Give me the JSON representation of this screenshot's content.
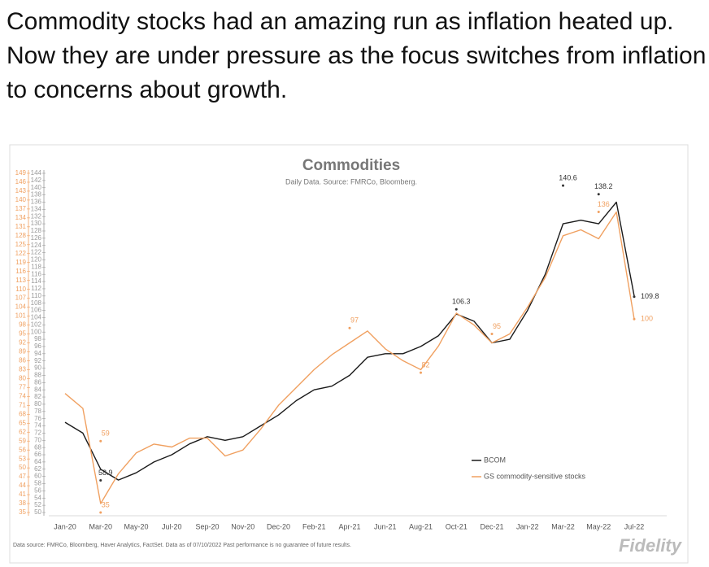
{
  "tweet_text": "Commodity stocks had an amazing run as inflation heated up. Now they are under pressure as the focus switches from inflation to concerns about growth.",
  "footer": "Data source: FMRCo, Bloomberg, Haver Analytics, FactSet. Data as of 07/10/2022 Past performance is no guarantee of future results.",
  "logo": "Fidelity",
  "chart_data": {
    "type": "line",
    "title": "Commodities",
    "subtitle": "Daily Data. Source: FMRCo, Bloomberg.",
    "categories": [
      "Jan-20",
      null,
      "Mar-20",
      null,
      "May-20",
      null,
      "Jul-20",
      null,
      "Sep-20",
      null,
      "Nov-20",
      null,
      "Dec-20",
      null,
      "Feb-21",
      null,
      "Apr-21",
      null,
      "Jun-21",
      null,
      "Aug-21",
      null,
      "Oct-21",
      null,
      "Dec-21",
      null,
      "Jan-22",
      null,
      "Mar-22",
      null,
      "May-22",
      null,
      "Jul-22"
    ],
    "series": [
      {
        "name": "BCOM",
        "color": "#1a1a1a",
        "axis": "y2",
        "values": [
          75,
          72,
          62,
          59,
          61,
          64,
          66,
          69,
          71,
          70,
          71,
          74,
          77,
          81,
          84,
          85,
          88,
          93,
          94,
          94,
          96,
          99,
          105,
          103,
          97,
          98,
          106,
          116,
          130,
          131,
          130,
          136,
          110
        ]
      },
      {
        "name": "GS commodity-sensitive stocks",
        "color": "#f0a060",
        "values": [
          75,
          70,
          38,
          48,
          55,
          58,
          57,
          60,
          60,
          54,
          56,
          63,
          71,
          77,
          83,
          88,
          92,
          96,
          90,
          86,
          83,
          91,
          102,
          98,
          92,
          95,
          104,
          114,
          128,
          130,
          127,
          136,
          100
        ]
      }
    ],
    "annotations": [
      {
        "x": "Mar-20",
        "y": 58.9,
        "axis": "y2"
      },
      {
        "x": "Oct-21",
        "y": 106.3,
        "axis": "y2"
      },
      {
        "x": "Mar-22",
        "y": 140.6,
        "axis": "y2"
      },
      {
        "x": "May-22",
        "y": 138.2,
        "axis": "y2"
      },
      {
        "x": "Jul-22",
        "y": 109.8,
        "axis": "y2"
      },
      {
        "x": "Mar-20",
        "y": 35
      },
      {
        "x": "Mar-20",
        "y": 59
      },
      {
        "x": "Apr-21",
        "y": 97
      },
      {
        "x": "Aug-21",
        "y": 82
      },
      {
        "x": "Dec-21",
        "y": 95
      },
      {
        "x": "May-22",
        "y": 136
      },
      {
        "x": "Jul-22",
        "y": 100
      }
    ],
    "ylim": [
      35,
      149
    ],
    "yticks": [
      35,
      38,
      41,
      44,
      47,
      50,
      53,
      56,
      59,
      62,
      65,
      68,
      71,
      74,
      77,
      80,
      83,
      86,
      89,
      92,
      95,
      98,
      101,
      104,
      107,
      110,
      113,
      116,
      119,
      122,
      125,
      128,
      131,
      134,
      137,
      140,
      143,
      146,
      149
    ],
    "y2lim": [
      50,
      144
    ],
    "y2ticks": [
      50,
      52,
      54,
      56,
      58,
      60,
      62,
      64,
      66,
      68,
      70,
      72,
      74,
      76,
      78,
      80,
      82,
      84,
      86,
      88,
      90,
      92,
      94,
      96,
      98,
      100,
      102,
      104,
      106,
      108,
      110,
      112,
      114,
      116,
      118,
      120,
      122,
      124,
      126,
      128,
      130,
      132,
      134,
      136,
      138,
      140,
      142,
      144
    ],
    "legend": "lower-right"
  }
}
